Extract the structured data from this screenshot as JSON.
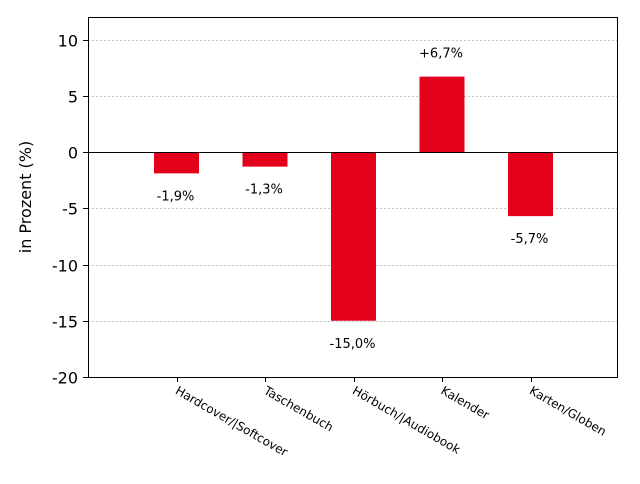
{
  "chart_data": {
    "type": "bar",
    "title": "",
    "xlabel": "",
    "ylabel": "in Prozent (%)",
    "categories": [
      "Hardcover/|Softcover",
      "Taschenbuch",
      "Hörbuch/|Audiobook",
      "Kalender",
      "Karten/Globen"
    ],
    "values": [
      -1.9,
      -1.3,
      -15.0,
      6.7,
      -5.7
    ],
    "data_labels": [
      "-1,9%",
      "-1,3%",
      "-15,0%",
      "+6,7%",
      "-5,7%"
    ],
    "ylim": [
      -20,
      12
    ],
    "yticks": [
      10,
      5,
      0,
      -5,
      -10,
      -15,
      -20
    ],
    "ytick_labels": [
      "10",
      "5",
      "0",
      "-5",
      "-10",
      "-15",
      "-20"
    ],
    "grid": true,
    "legend": "none",
    "colors": {
      "bar": "#e2001a",
      "grid": "#b0b0b0",
      "axis": "#000000"
    }
  }
}
